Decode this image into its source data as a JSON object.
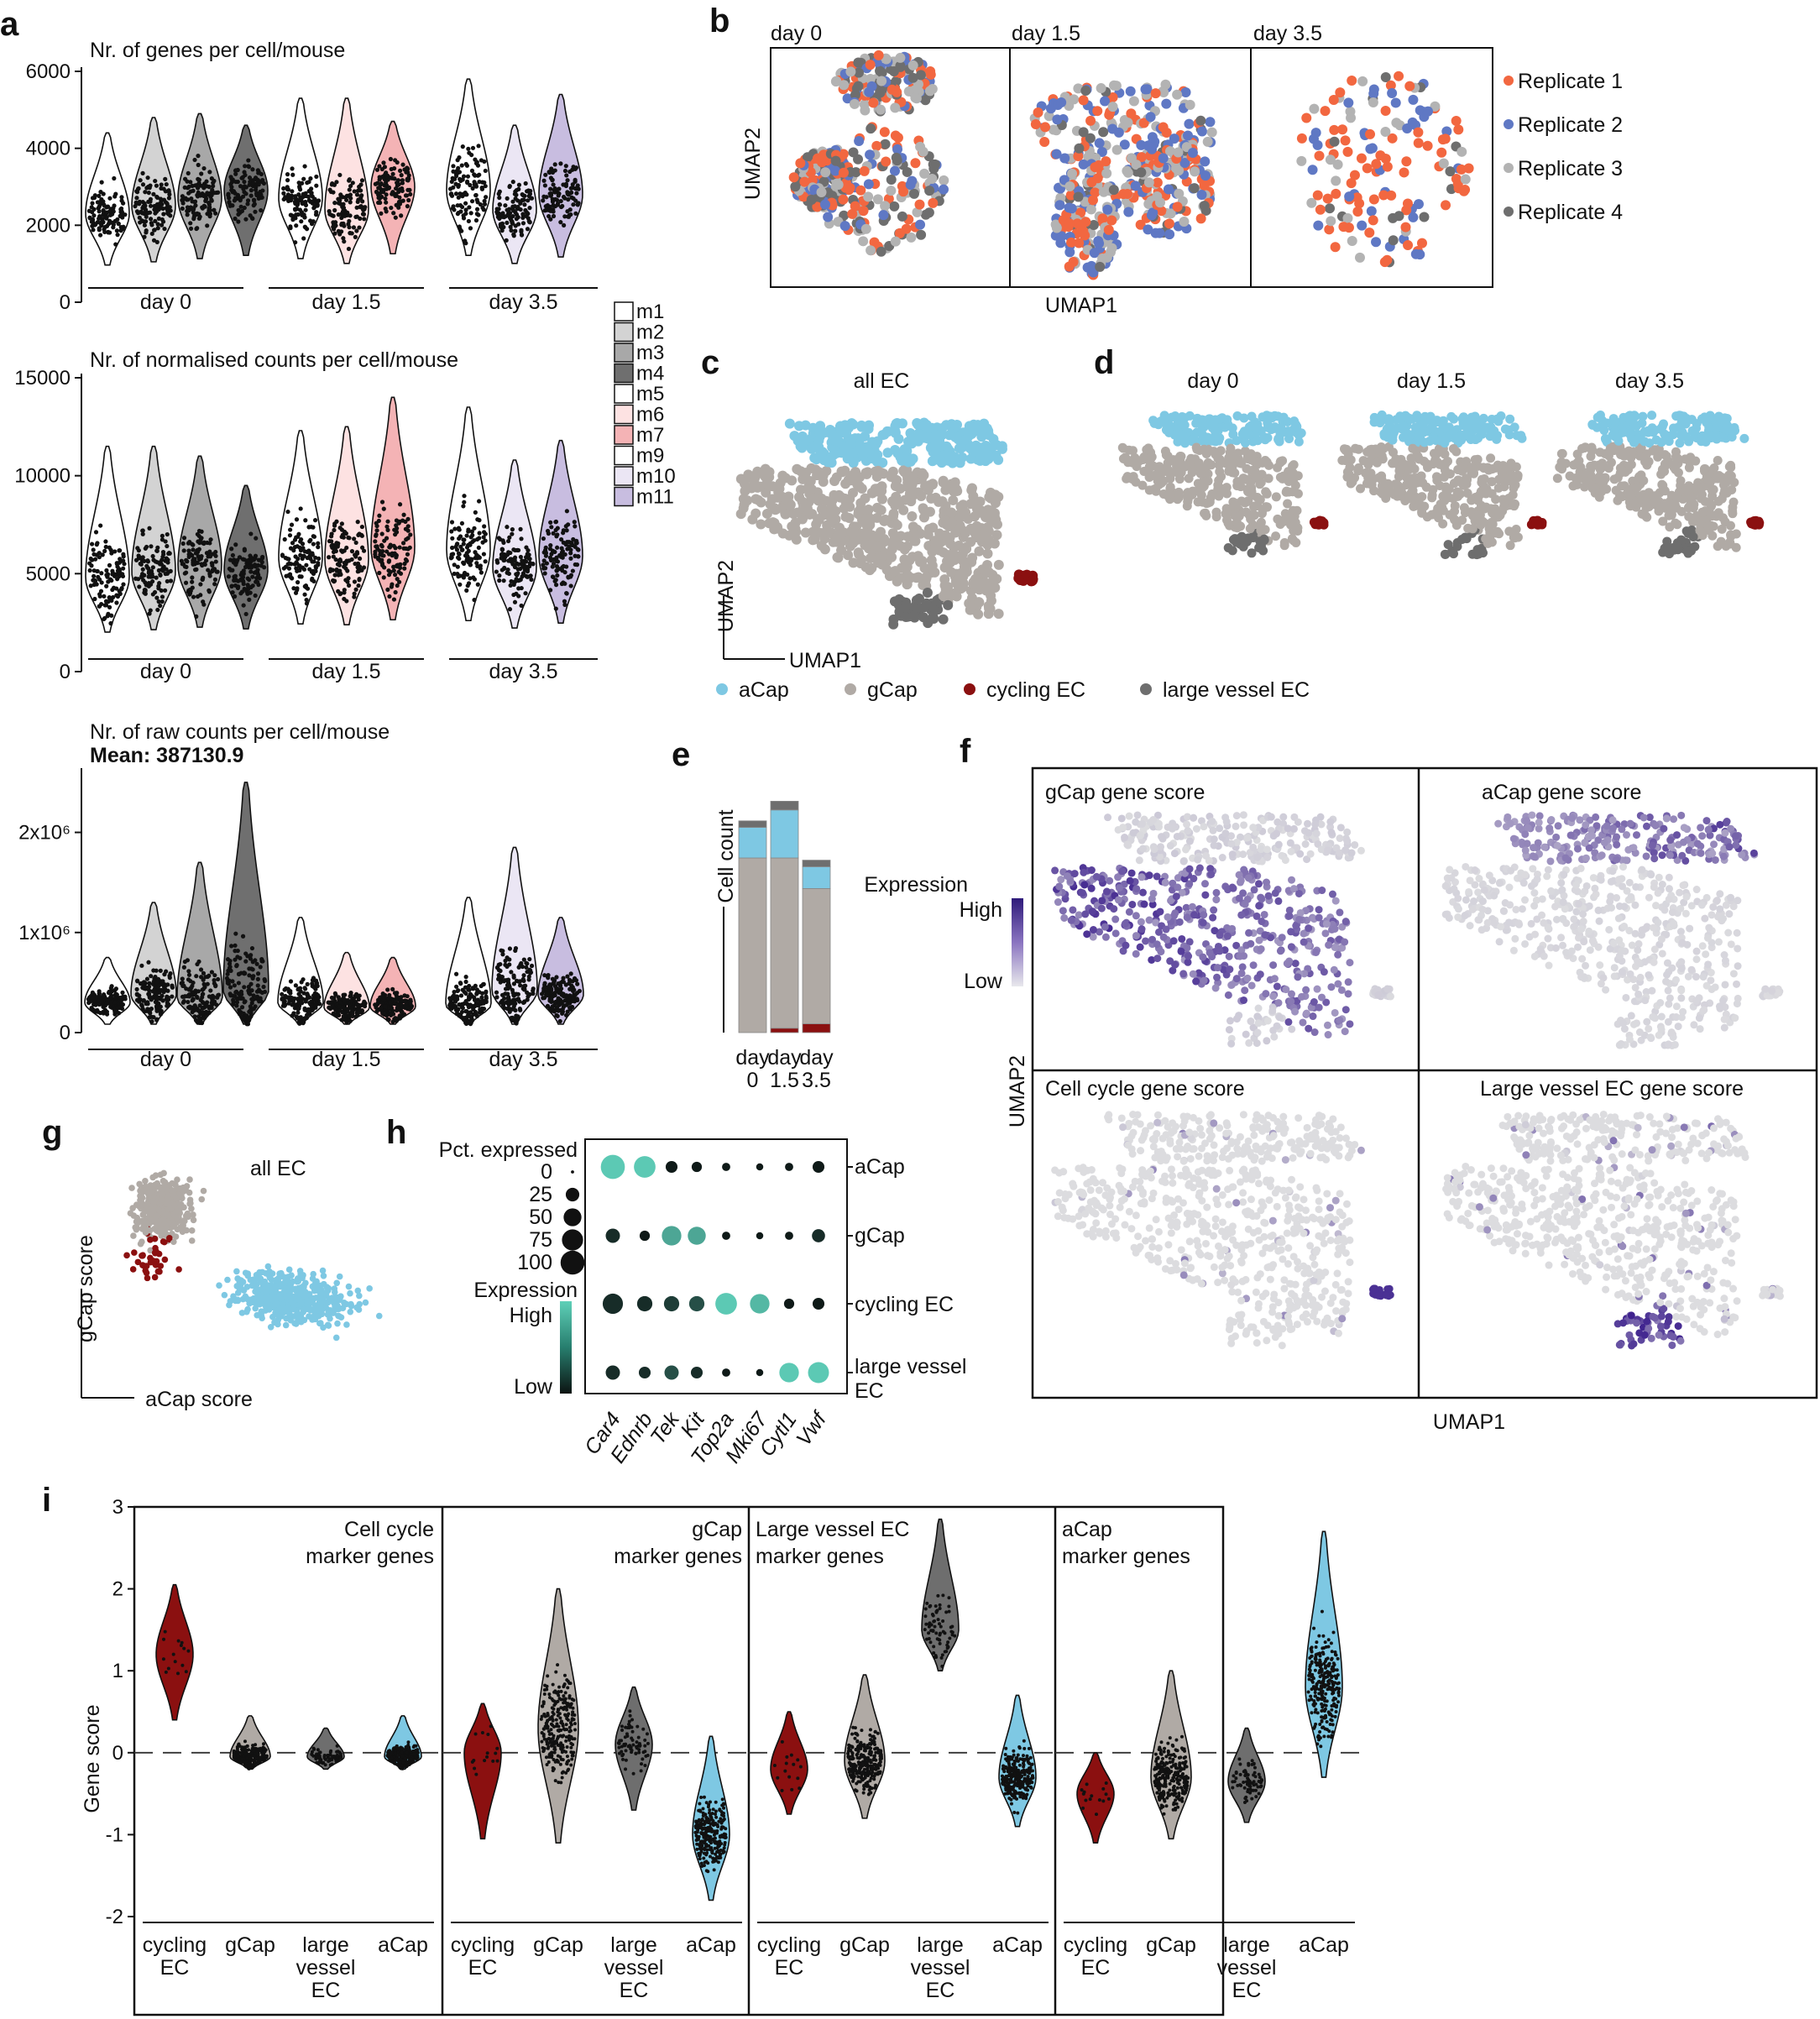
{
  "panel_letters": [
    "a",
    "b",
    "c",
    "d",
    "e",
    "f",
    "g",
    "h",
    "i"
  ],
  "colors": {
    "aCap": "#7ec8e3",
    "gCap": "#b0aaa5",
    "cycling": "#8b1010",
    "large_vessel": "#6e6e6e",
    "rep1": "#f26740",
    "rep2": "#5f78c4",
    "rep3": "#b3b3b3",
    "rep4": "#6e6e6e",
    "expr_high": "#3a1a8a",
    "expr_low": "#dcdce0",
    "teal_high": "#5cc9b4",
    "teal_low": "#0f1a18"
  },
  "a": {
    "mice": [
      "m1",
      "m2",
      "m3",
      "m4",
      "m5",
      "m6",
      "m7",
      "m9",
      "m10",
      "m11"
    ],
    "mouse_colors": [
      "#ffffff",
      "#d3d3d3",
      "#a8a8a8",
      "#6f6f6f",
      "#ffffff",
      "#fde2e2",
      "#f4b3b5",
      "#ffffff",
      "#ebe6f4",
      "#c8bde0"
    ],
    "days": [
      "day 0",
      "day 1.5",
      "day 3.5"
    ],
    "top": {
      "title": "Nr. of genes per cell/mouse",
      "yticks": [
        "0",
        "2000",
        "4000",
        "6000"
      ],
      "chart_data": {
        "type": "violin",
        "ylim": [
          0,
          6000
        ],
        "categories": [
          "m1",
          "m2",
          "m3",
          "m4",
          "m5",
          "m6",
          "m7",
          "m9",
          "m10",
          "m11"
        ],
        "median": [
          2300,
          2500,
          2700,
          2900,
          2700,
          2400,
          3000,
          2900,
          2400,
          2800
        ],
        "max": [
          4400,
          4800,
          4900,
          4600,
          5300,
          5300,
          4700,
          5800,
          4600,
          5400
        ]
      }
    },
    "mid": {
      "title": "Nr. of normalised counts per cell/mouse",
      "yticks": [
        "0",
        "5000",
        "10000",
        "15000"
      ],
      "chart_data": {
        "type": "violin",
        "ylim": [
          0,
          15000
        ],
        "categories": [
          "m1",
          "m2",
          "m3",
          "m4",
          "m5",
          "m6",
          "m7",
          "m9",
          "m10",
          "m11"
        ],
        "median": [
          4800,
          5100,
          5400,
          5200,
          5800,
          5700,
          6300,
          6200,
          5300,
          5900
        ],
        "max": [
          11500,
          11500,
          11000,
          9500,
          12300,
          12500,
          14000,
          13500,
          10800,
          11800
        ]
      }
    },
    "bot": {
      "title": "Nr. of raw counts per cell/mouse",
      "mean_label": "Mean: 387130.9",
      "yticks": [
        "0",
        "1x10⁶",
        "2x10⁶"
      ],
      "chart_data": {
        "type": "violin",
        "ylim": [
          0,
          2600000
        ],
        "categories": [
          "m1",
          "m2",
          "m3",
          "m4",
          "m5",
          "m6",
          "m7",
          "m9",
          "m10",
          "m11"
        ],
        "median": [
          300000,
          380000,
          350000,
          420000,
          300000,
          250000,
          260000,
          280000,
          420000,
          380000
        ],
        "max": [
          750000,
          1300000,
          1700000,
          2500000,
          1150000,
          800000,
          750000,
          1350000,
          1850000,
          1150000
        ]
      }
    }
  },
  "b": {
    "days": [
      "day  0",
      "day  1.5",
      "day  3.5"
    ],
    "xlabel": "UMAP1",
    "ylabel": "UMAP2",
    "legend": [
      "Replicate 1",
      "Replicate 2",
      "Replicate 3",
      "Replicate 4"
    ]
  },
  "c": {
    "title": "all EC",
    "xlabel": "UMAP1",
    "ylabel": "UMAP2"
  },
  "d": {
    "days": [
      "day 0",
      "day 1.5",
      "day 3.5"
    ]
  },
  "legend_cd": [
    "aCap",
    "gCap",
    "cycling EC",
    "large vessel EC"
  ],
  "e": {
    "ylabel": "Cell count",
    "days": [
      [
        "day",
        "0"
      ],
      [
        "day",
        "1.5"
      ],
      [
        "day",
        "3.5"
      ]
    ],
    "chart_data": {
      "type": "bar",
      "categories": [
        "day 0",
        "day 1.5",
        "day 3.5"
      ],
      "series": [
        {
          "name": "cycling EC",
          "values": [
            0,
            2,
            4
          ]
        },
        {
          "name": "gCap",
          "values": [
            80,
            78,
            62
          ]
        },
        {
          "name": "aCap",
          "values": [
            14,
            22,
            10
          ]
        },
        {
          "name": "large vessel EC",
          "values": [
            3,
            4,
            3
          ]
        }
      ]
    }
  },
  "f": {
    "titles": [
      "gCap gene score",
      "aCap gene score",
      "Cell cycle gene score",
      "Large vessel EC gene score"
    ],
    "legend_title": "Expression",
    "high": "High",
    "low": "Low",
    "xlabel": "UMAP1",
    "ylabel": "UMAP2"
  },
  "g": {
    "title": "all EC",
    "xlabel": "aCap score",
    "ylabel": "gCap score"
  },
  "h": {
    "pct_title": "Pct. expressed",
    "pct_values": [
      "0",
      "25",
      "50",
      "75",
      "100"
    ],
    "expr_title": "Expression",
    "high": "High",
    "low": "Low",
    "rows": [
      "aCap",
      "gCap",
      "cycling EC",
      "large vessel",
      "EC"
    ],
    "genes": [
      "Car4",
      "Ednrb",
      "Tek",
      "Kit",
      "Top2a",
      "Mki67",
      "Cytl1",
      "Vwf"
    ],
    "chart_data": {
      "type": "dotplot",
      "pct": [
        [
          90,
          70,
          15,
          10,
          5,
          3,
          5,
          15
        ],
        [
          25,
          10,
          55,
          45,
          5,
          3,
          5,
          20
        ],
        [
          60,
          30,
          30,
          30,
          70,
          55,
          10,
          15
        ],
        [
          25,
          15,
          25,
          15,
          5,
          3,
          55,
          65
        ]
      ],
      "expr": [
        [
          1,
          1,
          0,
          0,
          0,
          0,
          0,
          0
        ],
        [
          0.1,
          0,
          0.8,
          0.8,
          0,
          0,
          0,
          0.1
        ],
        [
          0.1,
          0.1,
          0.2,
          0.3,
          1,
          0.9,
          0,
          0
        ],
        [
          0.1,
          0.1,
          0.3,
          0.1,
          0,
          0,
          1,
          1
        ]
      ]
    }
  },
  "i": {
    "ylabel": "Gene score",
    "yticks": [
      "-2",
      "-1",
      "0",
      "1",
      "2",
      "3"
    ],
    "panels": [
      {
        "title1": "Cell cycle",
        "title2": "marker genes"
      },
      {
        "title1": "gCap",
        "title2": "marker genes"
      },
      {
        "title1": "Large vessel EC",
        "title2": "marker genes"
      },
      {
        "title1": "aCap",
        "title2": "marker genes"
      }
    ],
    "groups": [
      [
        "cycling",
        "EC"
      ],
      [
        "gCap"
      ],
      [
        "large",
        "vessel",
        "EC"
      ],
      [
        "aCap"
      ]
    ],
    "chart_data": {
      "type": "violin",
      "ylim": [
        -2,
        3
      ],
      "categories": [
        "cycling EC",
        "gCap",
        "large vessel EC",
        "aCap"
      ],
      "series": [
        {
          "name": "Cell cycle marker genes",
          "median": [
            1.2,
            -0.05,
            -0.05,
            -0.05
          ],
          "min": [
            0.4,
            -0.2,
            -0.2,
            -0.2
          ],
          "max": [
            2.05,
            0.45,
            0.3,
            0.45
          ]
        },
        {
          "name": "gCap marker genes",
          "median": [
            0.0,
            0.3,
            0.1,
            -1.0
          ],
          "min": [
            -1.05,
            -1.1,
            -0.7,
            -1.8
          ],
          "max": [
            0.6,
            2.0,
            0.8,
            0.2
          ]
        },
        {
          "name": "Large vessel EC marker genes",
          "median": [
            -0.2,
            -0.1,
            1.5,
            -0.3
          ],
          "min": [
            -0.75,
            -0.8,
            1.0,
            -0.9
          ],
          "max": [
            0.5,
            0.95,
            2.85,
            0.7
          ]
        },
        {
          "name": "aCap marker genes",
          "median": [
            -0.5,
            -0.3,
            -0.35,
            0.8
          ],
          "min": [
            -1.1,
            -1.05,
            -0.85,
            -0.3
          ],
          "max": [
            0.0,
            1.0,
            0.3,
            2.7
          ]
        }
      ]
    }
  }
}
